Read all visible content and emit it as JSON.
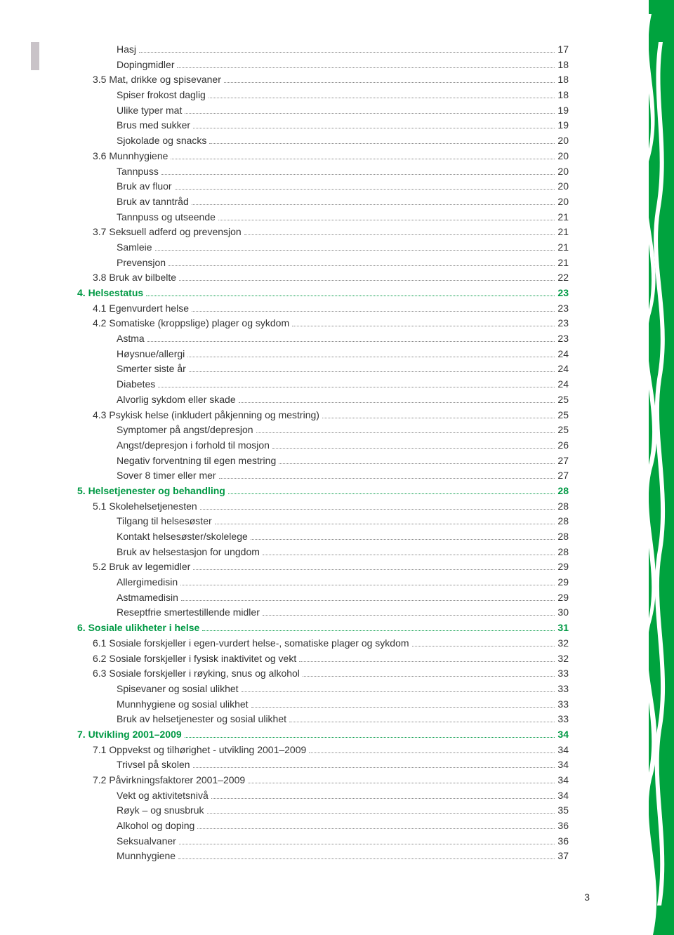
{
  "page_number": "3",
  "colors": {
    "text": "#333333",
    "heading": "#009944",
    "dots": "#888888",
    "tab_marker": "#c9c3c8",
    "sidebar_green": "#00a33e",
    "background": "#ffffff"
  },
  "toc": [
    {
      "level": 2,
      "label": "Hasj",
      "page": "17",
      "heading": false
    },
    {
      "level": 2,
      "label": "Dopingmidler",
      "page": "18",
      "heading": false
    },
    {
      "level": 1,
      "label": "3.5 Mat, drikke og spisevaner",
      "page": "18",
      "heading": false
    },
    {
      "level": 2,
      "label": "Spiser frokost daglig",
      "page": "18",
      "heading": false
    },
    {
      "level": 2,
      "label": "Ulike typer mat",
      "page": "19",
      "heading": false
    },
    {
      "level": 2,
      "label": "Brus med sukker",
      "page": "19",
      "heading": false
    },
    {
      "level": 2,
      "label": "Sjokolade og snacks",
      "page": "20",
      "heading": false
    },
    {
      "level": 1,
      "label": "3.6 Munnhygiene",
      "page": "20",
      "heading": false
    },
    {
      "level": 2,
      "label": "Tannpuss",
      "page": "20",
      "heading": false
    },
    {
      "level": 2,
      "label": "Bruk av fluor",
      "page": "20",
      "heading": false
    },
    {
      "level": 2,
      "label": "Bruk av tanntråd",
      "page": "20",
      "heading": false
    },
    {
      "level": 2,
      "label": "Tannpuss og utseende",
      "page": "21",
      "heading": false
    },
    {
      "level": 1,
      "label": "3.7 Seksuell adferd og prevensjon",
      "page": "21",
      "heading": false
    },
    {
      "level": 2,
      "label": "Samleie",
      "page": "21",
      "heading": false
    },
    {
      "level": 2,
      "label": "Prevensjon",
      "page": "21",
      "heading": false
    },
    {
      "level": 1,
      "label": "3.8 Bruk av bilbelte",
      "page": "22",
      "heading": false
    },
    {
      "level": 0,
      "label": "4. Helsestatus",
      "page": "23",
      "heading": true
    },
    {
      "level": 1,
      "label": "4.1 Egenvurdert helse",
      "page": "23",
      "heading": false
    },
    {
      "level": 1,
      "label": "4.2 Somatiske (kroppslige) plager og sykdom",
      "page": "23",
      "heading": false
    },
    {
      "level": 2,
      "label": "Astma",
      "page": "23",
      "heading": false
    },
    {
      "level": 2,
      "label": "Høysnue/allergi",
      "page": "24",
      "heading": false
    },
    {
      "level": 2,
      "label": "Smerter siste år",
      "page": "24",
      "heading": false
    },
    {
      "level": 2,
      "label": "Diabetes",
      "page": "24",
      "heading": false
    },
    {
      "level": 2,
      "label": "Alvorlig sykdom eller skade",
      "page": "25",
      "heading": false
    },
    {
      "level": 1,
      "label": "4.3 Psykisk helse (inkludert påkjenning og mestring)",
      "page": "25",
      "heading": false
    },
    {
      "level": 2,
      "label": "Symptomer på angst/depresjon",
      "page": "25",
      "heading": false
    },
    {
      "level": 2,
      "label": "Angst/depresjon i forhold til mosjon",
      "page": "26",
      "heading": false
    },
    {
      "level": 2,
      "label": "Negativ forventning til egen mestring",
      "page": "27",
      "heading": false
    },
    {
      "level": 2,
      "label": "Sover 8 timer eller mer",
      "page": "27",
      "heading": false
    },
    {
      "level": 0,
      "label": "5. Helsetjenester og behandling",
      "page": "28",
      "heading": true
    },
    {
      "level": 1,
      "label": "5.1 Skolehelsetjenesten",
      "page": "28",
      "heading": false
    },
    {
      "level": 2,
      "label": "Tilgang til helsesøster",
      "page": "28",
      "heading": false
    },
    {
      "level": 2,
      "label": "Kontakt helsesøster/skolelege",
      "page": "28",
      "heading": false
    },
    {
      "level": 2,
      "label": "Bruk av helsestasjon for ungdom",
      "page": "28",
      "heading": false
    },
    {
      "level": 1,
      "label": "5.2 Bruk av legemidler",
      "page": "29",
      "heading": false
    },
    {
      "level": 2,
      "label": "Allergimedisin",
      "page": "29",
      "heading": false
    },
    {
      "level": 2,
      "label": "Astmamedisin",
      "page": "29",
      "heading": false
    },
    {
      "level": 2,
      "label": "Reseptfrie smertestillende midler",
      "page": "30",
      "heading": false
    },
    {
      "level": 0,
      "label": "6. Sosiale ulikheter i helse",
      "page": "31",
      "heading": true
    },
    {
      "level": 1,
      "label": "6.1 Sosiale forskjeller i egen-vurdert helse-, somatiske plager og sykdom",
      "page": "32",
      "heading": false
    },
    {
      "level": 1,
      "label": "6.2 Sosiale forskjeller i fysisk inaktivitet og vekt",
      "page": "32",
      "heading": false
    },
    {
      "level": 1,
      "label": "6.3 Sosiale forskjeller i røyking, snus og alkohol",
      "page": "33",
      "heading": false
    },
    {
      "level": 2,
      "label": "Spisevaner og sosial ulikhet",
      "page": "33",
      "heading": false
    },
    {
      "level": 2,
      "label": "Munnhygiene og sosial ulikhet",
      "page": "33",
      "heading": false
    },
    {
      "level": 2,
      "label": "Bruk av helsetjenester og sosial ulikhet",
      "page": "33",
      "heading": false
    },
    {
      "level": 0,
      "label": "7. Utvikling 2001–2009",
      "page": "34",
      "heading": true
    },
    {
      "level": 1,
      "label": "7.1 Oppvekst og tilhørighet - utvikling 2001–2009",
      "page": "34",
      "heading": false
    },
    {
      "level": 2,
      "label": "Trivsel på skolen",
      "page": "34",
      "heading": false
    },
    {
      "level": 1,
      "label": "7.2 Påvirkningsfaktorer 2001–2009",
      "page": "34",
      "heading": false
    },
    {
      "level": 2,
      "label": "Vekt og aktivitetsnivå",
      "page": "34",
      "heading": false
    },
    {
      "level": 2,
      "label": "Røyk – og snusbruk",
      "page": "35",
      "heading": false
    },
    {
      "level": 2,
      "label": "Alkohol og doping",
      "page": "36",
      "heading": false
    },
    {
      "level": 2,
      "label": "Seksualvaner",
      "page": "36",
      "heading": false
    },
    {
      "level": 2,
      "label": "Munnhygiene",
      "page": "37",
      "heading": false
    }
  ]
}
